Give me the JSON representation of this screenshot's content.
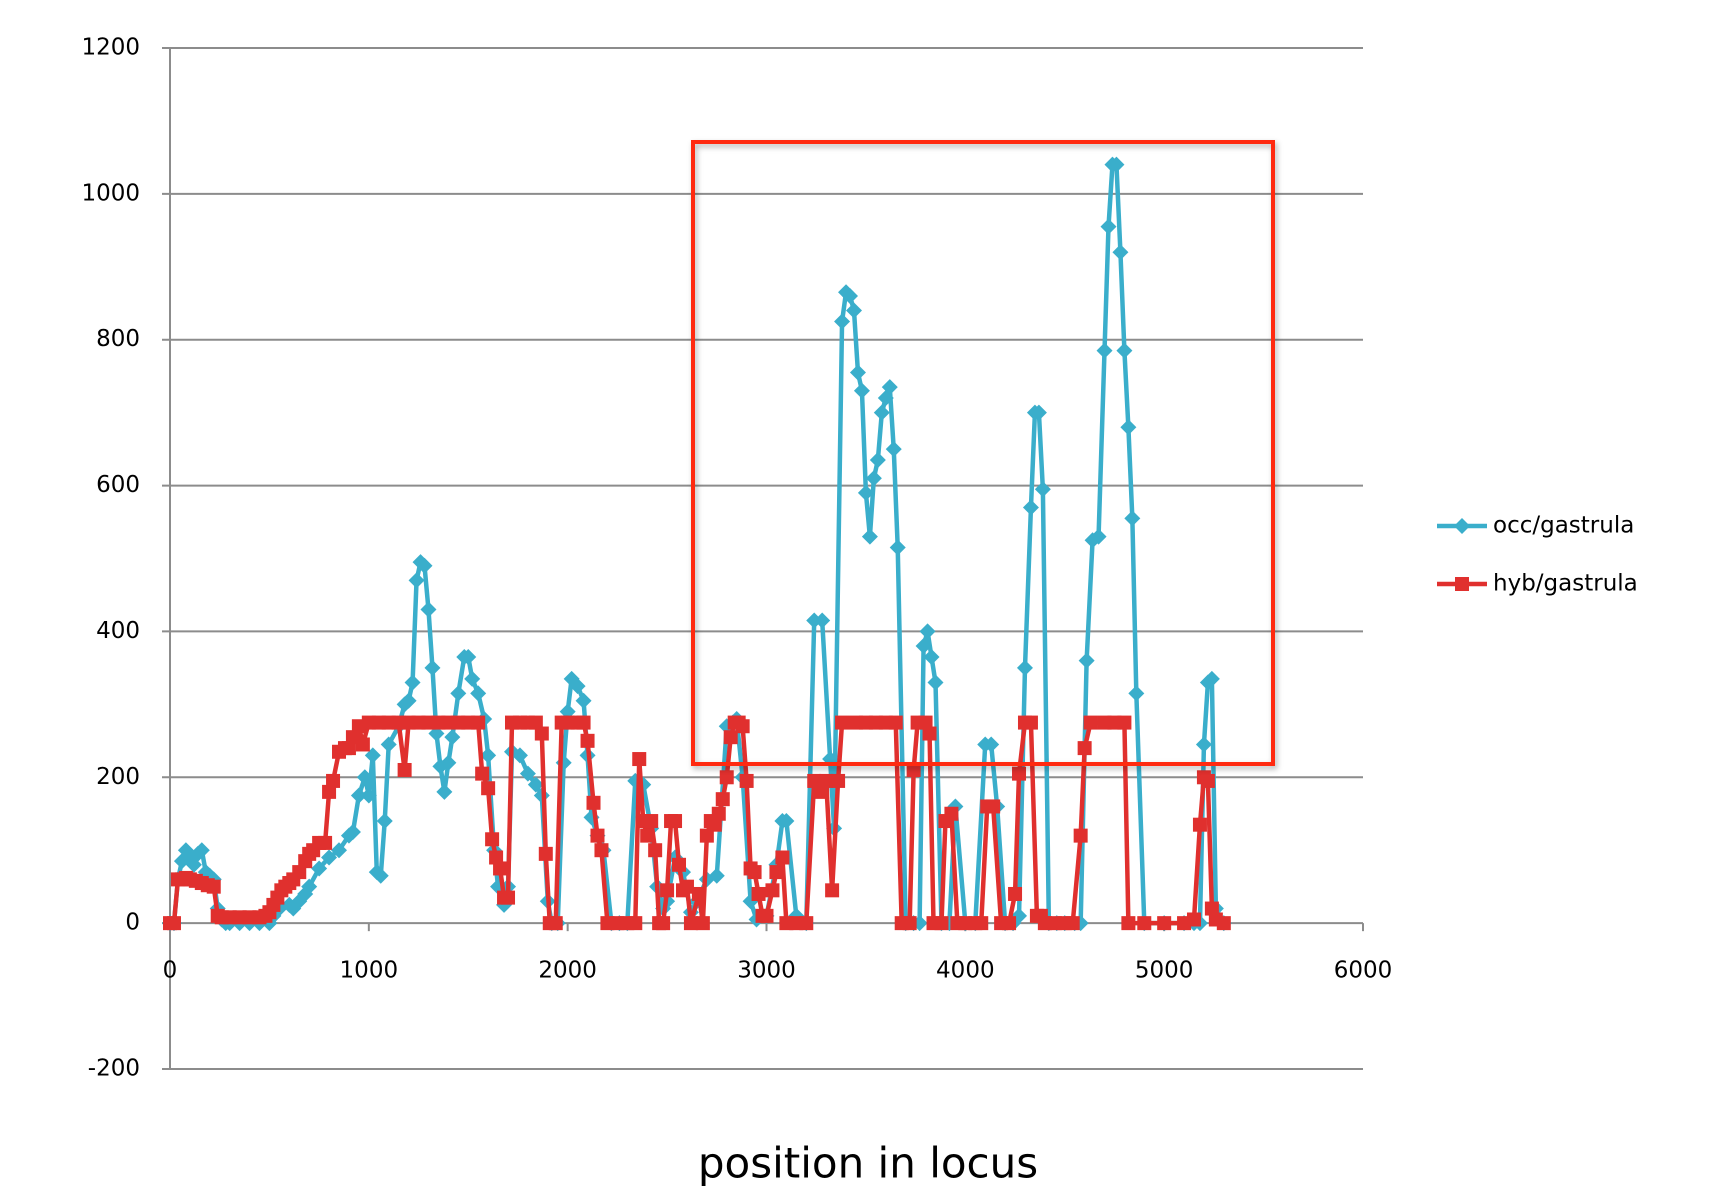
{
  "chart_data": {
    "type": "line",
    "x_label": "position in locus",
    "xlim": [
      0,
      6000
    ],
    "xticks": [
      0,
      1000,
      2000,
      3000,
      4000,
      5000,
      6000
    ],
    "ylim": [
      -200,
      1200
    ],
    "yticks": [
      -200,
      0,
      200,
      400,
      600,
      800,
      1000,
      1200
    ],
    "grid": true,
    "legend": "right",
    "series": [
      {
        "name": "occ/gastrula",
        "color": "#3aaecb",
        "marker": "diamond",
        "x": [
          0,
          20,
          40,
          60,
          80,
          100,
          120,
          140,
          160,
          180,
          200,
          220,
          240,
          260,
          280,
          300,
          350,
          400,
          450,
          500,
          520,
          550,
          600,
          620,
          650,
          680,
          700,
          750,
          800,
          850,
          900,
          920,
          950,
          980,
          1000,
          1020,
          1040,
          1060,
          1080,
          1100,
          1150,
          1180,
          1200,
          1220,
          1240,
          1260,
          1280,
          1300,
          1320,
          1340,
          1360,
          1380,
          1400,
          1420,
          1450,
          1480,
          1500,
          1520,
          1550,
          1580,
          1600,
          1630,
          1650,
          1680,
          1700,
          1720,
          1760,
          1800,
          1840,
          1870,
          1900,
          1920,
          1950,
          1980,
          2000,
          2020,
          2050,
          2080,
          2100,
          2120,
          2150,
          2180,
          2220,
          2260,
          2300,
          2340,
          2380,
          2420,
          2450,
          2480,
          2500,
          2540,
          2580,
          2620,
          2650,
          2700,
          2750,
          2800,
          2830,
          2850,
          2880,
          2920,
          2950,
          3000,
          3050,
          3080,
          3100,
          3150,
          3200,
          3240,
          3280,
          3320,
          3340,
          3380,
          3400,
          3420,
          3440,
          3460,
          3480,
          3500,
          3520,
          3540,
          3560,
          3580,
          3600,
          3620,
          3640,
          3660,
          3700,
          3740,
          3770,
          3790,
          3810,
          3830,
          3850,
          3880,
          3920,
          3950,
          4000,
          4050,
          4100,
          4130,
          4160,
          4200,
          4240,
          4270,
          4300,
          4330,
          4350,
          4370,
          4390,
          4420,
          4460,
          4500,
          4550,
          4580,
          4610,
          4640,
          4670,
          4700,
          4720,
          4740,
          4760,
          4780,
          4800,
          4820,
          4840,
          4860,
          4900,
          5000,
          5100,
          5150,
          5180,
          5200,
          5220,
          5240,
          5260,
          5300
        ],
        "values": [
          0,
          0,
          60,
          85,
          100,
          90,
          80,
          95,
          100,
          70,
          65,
          60,
          20,
          5,
          0,
          0,
          0,
          0,
          0,
          0,
          10,
          20,
          25,
          20,
          30,
          40,
          50,
          75,
          90,
          100,
          120,
          125,
          175,
          200,
          175,
          230,
          70,
          65,
          140,
          245,
          270,
          300,
          305,
          330,
          470,
          495,
          490,
          430,
          350,
          260,
          215,
          180,
          220,
          255,
          315,
          365,
          365,
          335,
          315,
          280,
          230,
          100,
          50,
          25,
          50,
          235,
          230,
          205,
          190,
          175,
          30,
          0,
          0,
          220,
          290,
          335,
          325,
          305,
          230,
          145,
          120,
          100,
          0,
          0,
          0,
          195,
          190,
          130,
          50,
          20,
          30,
          90,
          70,
          15,
          30,
          60,
          65,
          270,
          275,
          280,
          200,
          30,
          5,
          10,
          80,
          140,
          140,
          10,
          0,
          415,
          415,
          225,
          130,
          825,
          865,
          860,
          840,
          755,
          730,
          590,
          530,
          610,
          635,
          700,
          720,
          735,
          650,
          515,
          0,
          0,
          0,
          380,
          400,
          365,
          330,
          0,
          0,
          160,
          0,
          0,
          245,
          245,
          160,
          0,
          0,
          10,
          350,
          570,
          700,
          700,
          595,
          0,
          0,
          0,
          0,
          0,
          360,
          525,
          530,
          785,
          955,
          1040,
          1040,
          920,
          785,
          680,
          555,
          315,
          0,
          0,
          0,
          0,
          0,
          245,
          330,
          335,
          20,
          0
        ]
      },
      {
        "name": "hyb/gastrula",
        "color": "#e0302e",
        "marker": "square",
        "x": [
          0,
          20,
          40,
          60,
          80,
          100,
          130,
          160,
          190,
          220,
          240,
          260,
          300,
          350,
          400,
          450,
          480,
          500,
          520,
          540,
          560,
          580,
          600,
          620,
          650,
          680,
          700,
          720,
          750,
          780,
          800,
          820,
          850,
          880,
          900,
          920,
          950,
          970,
          1000,
          1050,
          1100,
          1150,
          1180,
          1200,
          1250,
          1300,
          1350,
          1400,
          1450,
          1500,
          1550,
          1570,
          1600,
          1620,
          1640,
          1660,
          1680,
          1700,
          1720,
          1760,
          1800,
          1840,
          1870,
          1890,
          1910,
          1940,
          1970,
          2000,
          2050,
          2080,
          2100,
          2130,
          2150,
          2170,
          2200,
          2250,
          2300,
          2340,
          2360,
          2380,
          2400,
          2420,
          2440,
          2460,
          2480,
          2500,
          2520,
          2540,
          2560,
          2580,
          2600,
          2620,
          2660,
          2680,
          2700,
          2720,
          2740,
          2760,
          2780,
          2800,
          2820,
          2840,
          2860,
          2880,
          2900,
          2920,
          2940,
          2960,
          2980,
          3000,
          3030,
          3050,
          3080,
          3100,
          3150,
          3200,
          3240,
          3280,
          3300,
          3330,
          3360,
          3380,
          3450,
          3500,
          3550,
          3600,
          3650,
          3680,
          3720,
          3740,
          3760,
          3800,
          3820,
          3840,
          3880,
          3900,
          3930,
          3960,
          4000,
          4050,
          4080,
          4110,
          4140,
          4180,
          4220,
          4250,
          4270,
          4300,
          4330,
          4360,
          4380,
          4400,
          4450,
          4500,
          4540,
          4580,
          4600,
          4630,
          4700,
          4750,
          4800,
          4820,
          4900,
          5000,
          5100,
          5150,
          5180,
          5200,
          5220,
          5240,
          5260,
          5300
        ],
        "values": [
          0,
          0,
          60,
          60,
          62,
          60,
          58,
          55,
          52,
          50,
          10,
          8,
          8,
          8,
          8,
          8,
          10,
          15,
          25,
          35,
          45,
          50,
          55,
          60,
          70,
          85,
          95,
          100,
          110,
          110,
          180,
          195,
          235,
          240,
          240,
          255,
          270,
          245,
          275,
          275,
          275,
          275,
          210,
          275,
          275,
          275,
          275,
          275,
          275,
          275,
          275,
          205,
          185,
          115,
          90,
          75,
          35,
          35,
          275,
          275,
          275,
          275,
          260,
          95,
          0,
          0,
          275,
          275,
          275,
          275,
          250,
          165,
          120,
          100,
          0,
          0,
          0,
          0,
          225,
          140,
          120,
          140,
          100,
          0,
          0,
          45,
          140,
          140,
          80,
          45,
          50,
          0,
          40,
          0,
          120,
          140,
          135,
          150,
          170,
          200,
          255,
          275,
          275,
          270,
          195,
          75,
          70,
          40,
          10,
          10,
          45,
          70,
          90,
          0,
          0,
          0,
          195,
          180,
          195,
          45,
          195,
          275,
          275,
          275,
          275,
          275,
          275,
          0,
          0,
          210,
          275,
          275,
          260,
          0,
          0,
          140,
          150,
          0,
          0,
          0,
          0,
          160,
          160,
          0,
          0,
          40,
          205,
          275,
          275,
          10,
          10,
          0,
          0,
          0,
          0,
          120,
          240,
          275,
          275,
          275,
          275,
          0,
          0,
          0,
          0,
          5,
          135,
          200,
          195,
          20,
          5,
          0
        ]
      }
    ]
  }
}
